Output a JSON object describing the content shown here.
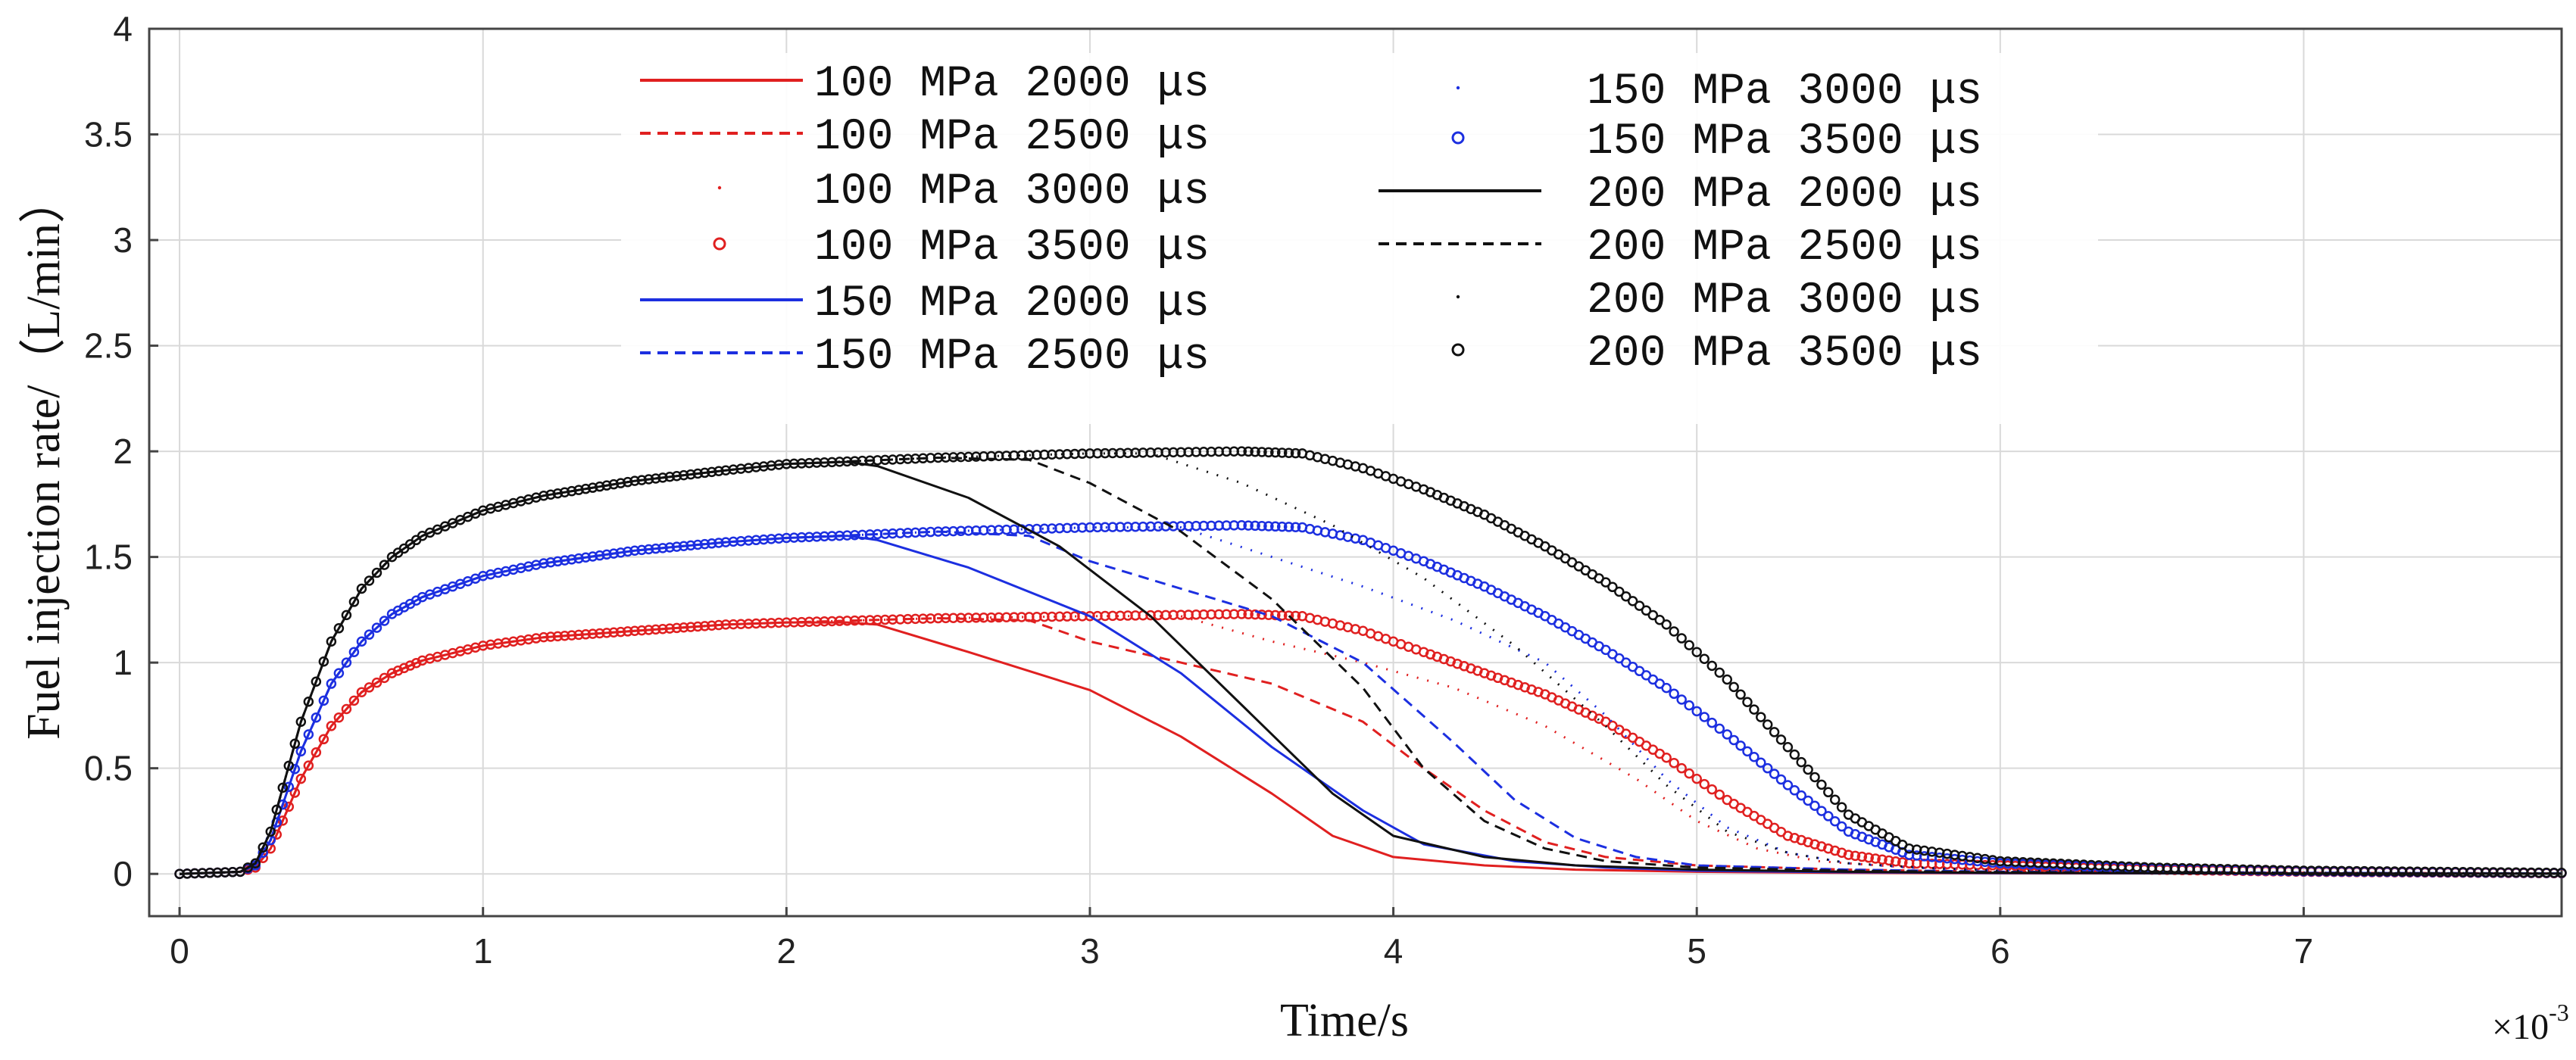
{
  "chart_data": {
    "type": "line",
    "title": "",
    "xlabel": "Time/s",
    "ylabel": "Fuel injection rate/（L/min）",
    "x_multiplier_label": "×10",
    "x_multiplier_exponent": "-3",
    "xlim": [
      -0.1,
      7.85
    ],
    "ylim": [
      -0.2,
      4.0
    ],
    "xticks": [
      0,
      1,
      2,
      3,
      4,
      5,
      6,
      7
    ],
    "yticks": [
      0,
      0.5,
      1,
      1.5,
      2,
      2.5,
      3,
      3.5,
      4
    ],
    "xtick_labels": [
      "0",
      "1",
      "2",
      "3",
      "4",
      "5",
      "6",
      "7"
    ],
    "ytick_labels": [
      "0",
      "0.5",
      "1",
      "1.5",
      "2",
      "2.5",
      "3",
      "3.5",
      "4"
    ],
    "grid": true,
    "legend_position": "top-center",
    "series": [
      {
        "name": "100 MPa 2000 μs",
        "pressure": "100",
        "duration": "2000",
        "color": "#e02020",
        "style": "solid-thin",
        "x": [
          0,
          0.2,
          0.25,
          0.3,
          0.4,
          0.5,
          0.6,
          0.7,
          0.8,
          1.0,
          1.2,
          1.5,
          1.8,
          2.0,
          2.2,
          2.3,
          2.6,
          3.0,
          3.3,
          3.6,
          3.8,
          4.0,
          4.3,
          4.6,
          5.0,
          5.5,
          6.0,
          7.0,
          7.85
        ],
        "y": [
          0,
          0.01,
          0.03,
          0.12,
          0.45,
          0.7,
          0.86,
          0.95,
          1.01,
          1.08,
          1.12,
          1.15,
          1.18,
          1.19,
          1.19,
          1.18,
          1.05,
          0.87,
          0.65,
          0.38,
          0.18,
          0.08,
          0.04,
          0.02,
          0.01,
          0.005,
          0.003,
          0.002,
          0.001
        ]
      },
      {
        "name": "100 MPa 2500 μs",
        "pressure": "100",
        "duration": "2500",
        "color": "#e02020",
        "style": "dashed",
        "x": [
          0,
          0.2,
          0.25,
          0.3,
          0.4,
          0.5,
          0.6,
          0.7,
          0.8,
          1.0,
          1.2,
          1.5,
          1.8,
          2.0,
          2.5,
          2.8,
          3.0,
          3.3,
          3.6,
          3.9,
          4.1,
          4.3,
          4.5,
          4.7,
          5.0,
          5.5,
          6.0,
          7.0,
          7.85
        ],
        "y": [
          0,
          0.01,
          0.03,
          0.12,
          0.45,
          0.7,
          0.86,
          0.95,
          1.01,
          1.08,
          1.12,
          1.15,
          1.18,
          1.19,
          1.21,
          1.2,
          1.1,
          1.0,
          0.9,
          0.72,
          0.5,
          0.3,
          0.15,
          0.08,
          0.04,
          0.02,
          0.01,
          0.005,
          0.002
        ]
      },
      {
        "name": "100 MPa 3000 μs",
        "pressure": "100",
        "duration": "3000",
        "color": "#e02020",
        "style": "dotted",
        "x": [
          0,
          0.2,
          0.25,
          0.3,
          0.4,
          0.5,
          0.6,
          0.7,
          0.8,
          1.0,
          1.2,
          1.5,
          1.8,
          2.0,
          2.5,
          3.0,
          3.3,
          3.6,
          3.9,
          4.2,
          4.5,
          4.8,
          5.0,
          5.2,
          5.4,
          5.7,
          6.0,
          7.0,
          7.85
        ],
        "y": [
          0,
          0.01,
          0.03,
          0.12,
          0.45,
          0.7,
          0.86,
          0.95,
          1.01,
          1.08,
          1.12,
          1.15,
          1.18,
          1.19,
          1.21,
          1.22,
          1.22,
          1.1,
          1.0,
          0.88,
          0.7,
          0.45,
          0.25,
          0.12,
          0.06,
          0.03,
          0.02,
          0.005,
          0.002
        ]
      },
      {
        "name": "100 MPa 3500 μs",
        "pressure": "100",
        "duration": "3500",
        "color": "#e02020",
        "style": "circles",
        "x": [
          0,
          0.2,
          0.25,
          0.3,
          0.4,
          0.5,
          0.6,
          0.7,
          0.8,
          1.0,
          1.2,
          1.5,
          1.8,
          2.0,
          2.5,
          3.0,
          3.5,
          3.7,
          3.9,
          4.1,
          4.3,
          4.5,
          4.7,
          4.9,
          5.1,
          5.3,
          5.5,
          5.7,
          6.0,
          6.5,
          7.0,
          7.85
        ],
        "y": [
          0,
          0.01,
          0.03,
          0.12,
          0.45,
          0.7,
          0.86,
          0.95,
          1.01,
          1.08,
          1.12,
          1.15,
          1.18,
          1.19,
          1.21,
          1.22,
          1.23,
          1.22,
          1.15,
          1.05,
          0.95,
          0.85,
          0.72,
          0.55,
          0.35,
          0.18,
          0.09,
          0.05,
          0.04,
          0.02,
          0.01,
          0.003
        ]
      },
      {
        "name": "150 MPa 2000 μs",
        "pressure": "150",
        "duration": "2000",
        "color": "#1c2fe0",
        "style": "solid-thin",
        "x": [
          0,
          0.2,
          0.25,
          0.3,
          0.4,
          0.5,
          0.6,
          0.7,
          0.8,
          1.0,
          1.2,
          1.5,
          1.8,
          2.0,
          2.2,
          2.3,
          2.6,
          3.0,
          3.3,
          3.6,
          3.9,
          4.1,
          4.4,
          4.7,
          5.0,
          5.5,
          6.0,
          7.0,
          7.85
        ],
        "y": [
          0,
          0.01,
          0.04,
          0.16,
          0.58,
          0.9,
          1.1,
          1.23,
          1.31,
          1.41,
          1.47,
          1.53,
          1.57,
          1.59,
          1.6,
          1.58,
          1.45,
          1.22,
          0.95,
          0.6,
          0.3,
          0.14,
          0.06,
          0.03,
          0.015,
          0.008,
          0.004,
          0.002,
          0.001
        ]
      },
      {
        "name": "150 MPa 2500 μs",
        "pressure": "150",
        "duration": "2500",
        "color": "#1c2fe0",
        "style": "dashed",
        "x": [
          0,
          0.2,
          0.25,
          0.3,
          0.4,
          0.5,
          0.6,
          0.7,
          0.8,
          1.0,
          1.2,
          1.5,
          1.8,
          2.0,
          2.5,
          2.8,
          3.0,
          3.3,
          3.6,
          3.9,
          4.2,
          4.4,
          4.6,
          4.8,
          5.0,
          5.5,
          6.0,
          7.0,
          7.85
        ],
        "y": [
          0,
          0.01,
          0.04,
          0.16,
          0.58,
          0.9,
          1.1,
          1.23,
          1.31,
          1.41,
          1.47,
          1.53,
          1.57,
          1.59,
          1.62,
          1.6,
          1.48,
          1.35,
          1.22,
          1.0,
          0.62,
          0.35,
          0.17,
          0.08,
          0.04,
          0.02,
          0.01,
          0.005,
          0.002
        ]
      },
      {
        "name": "150 MPa 3000 μs",
        "pressure": "150",
        "duration": "3000",
        "color": "#1c2fe0",
        "style": "dotted",
        "x": [
          0,
          0.2,
          0.25,
          0.3,
          0.4,
          0.5,
          0.6,
          0.7,
          0.8,
          1.0,
          1.2,
          1.5,
          1.8,
          2.0,
          2.5,
          3.0,
          3.3,
          3.6,
          3.9,
          4.2,
          4.5,
          4.7,
          4.9,
          5.1,
          5.3,
          5.5,
          5.7,
          6.0,
          7.0,
          7.85
        ],
        "y": [
          0,
          0.01,
          0.04,
          0.16,
          0.58,
          0.9,
          1.1,
          1.23,
          1.31,
          1.41,
          1.47,
          1.53,
          1.57,
          1.59,
          1.62,
          1.64,
          1.64,
          1.5,
          1.36,
          1.2,
          1.0,
          0.75,
          0.45,
          0.22,
          0.1,
          0.05,
          0.03,
          0.015,
          0.005,
          0.002
        ]
      },
      {
        "name": "150 MPa 3500 μs",
        "pressure": "150",
        "duration": "3500",
        "color": "#1c2fe0",
        "style": "circles",
        "x": [
          0,
          0.2,
          0.25,
          0.3,
          0.4,
          0.5,
          0.6,
          0.7,
          0.8,
          1.0,
          1.2,
          1.5,
          1.8,
          2.0,
          2.5,
          3.0,
          3.5,
          3.7,
          3.9,
          4.1,
          4.3,
          4.5,
          4.7,
          4.9,
          5.1,
          5.3,
          5.5,
          5.7,
          6.0,
          6.5,
          7.0,
          7.85
        ],
        "y": [
          0,
          0.01,
          0.04,
          0.16,
          0.58,
          0.9,
          1.1,
          1.23,
          1.31,
          1.41,
          1.47,
          1.53,
          1.57,
          1.59,
          1.62,
          1.64,
          1.65,
          1.64,
          1.58,
          1.48,
          1.36,
          1.22,
          1.06,
          0.88,
          0.66,
          0.42,
          0.2,
          0.09,
          0.05,
          0.025,
          0.012,
          0.004
        ]
      },
      {
        "name": "200 MPa 2000 μs",
        "pressure": "200",
        "duration": "2000",
        "color": "#111111",
        "style": "solid-thin",
        "x": [
          0,
          0.2,
          0.25,
          0.3,
          0.4,
          0.5,
          0.6,
          0.7,
          0.8,
          1.0,
          1.2,
          1.5,
          1.8,
          2.0,
          2.2,
          2.3,
          2.6,
          2.9,
          3.2,
          3.5,
          3.8,
          4.0,
          4.3,
          4.6,
          5.0,
          5.5,
          6.0,
          7.0,
          7.85
        ],
        "y": [
          0,
          0.01,
          0.05,
          0.2,
          0.72,
          1.1,
          1.35,
          1.5,
          1.6,
          1.72,
          1.79,
          1.86,
          1.91,
          1.94,
          1.95,
          1.93,
          1.78,
          1.55,
          1.22,
          0.8,
          0.38,
          0.18,
          0.08,
          0.04,
          0.02,
          0.01,
          0.005,
          0.002,
          0.001
        ]
      },
      {
        "name": "200 MPa 2500 μs",
        "pressure": "200",
        "duration": "2500",
        "color": "#111111",
        "style": "dashed",
        "x": [
          0,
          0.2,
          0.25,
          0.3,
          0.4,
          0.5,
          0.6,
          0.7,
          0.8,
          1.0,
          1.2,
          1.5,
          1.8,
          2.0,
          2.5,
          2.8,
          3.0,
          3.3,
          3.6,
          3.9,
          4.1,
          4.3,
          4.5,
          4.7,
          5.0,
          5.5,
          6.0,
          7.0,
          7.85
        ],
        "y": [
          0,
          0.01,
          0.05,
          0.2,
          0.72,
          1.1,
          1.35,
          1.5,
          1.6,
          1.72,
          1.79,
          1.86,
          1.91,
          1.94,
          1.97,
          1.96,
          1.85,
          1.62,
          1.3,
          0.88,
          0.5,
          0.25,
          0.12,
          0.06,
          0.03,
          0.015,
          0.008,
          0.003,
          0.001
        ]
      },
      {
        "name": "200 MPa 3000 μs",
        "pressure": "200",
        "duration": "3000",
        "color": "#111111",
        "style": "dotted",
        "x": [
          0,
          0.2,
          0.25,
          0.3,
          0.4,
          0.5,
          0.6,
          0.7,
          0.8,
          1.0,
          1.2,
          1.5,
          1.8,
          2.0,
          2.5,
          3.0,
          3.2,
          3.5,
          3.8,
          4.1,
          4.4,
          4.7,
          4.9,
          5.1,
          5.3,
          5.5,
          5.8,
          6.0,
          7.0,
          7.85
        ],
        "y": [
          0,
          0.01,
          0.05,
          0.2,
          0.72,
          1.1,
          1.35,
          1.5,
          1.6,
          1.72,
          1.79,
          1.86,
          1.91,
          1.94,
          1.97,
          1.99,
          1.99,
          1.85,
          1.65,
          1.4,
          1.08,
          0.7,
          0.42,
          0.2,
          0.1,
          0.05,
          0.025,
          0.015,
          0.005,
          0.002
        ]
      },
      {
        "name": "200 MPa 3500 μs",
        "pressure": "200",
        "duration": "3500",
        "color": "#111111",
        "style": "circles",
        "x": [
          0,
          0.2,
          0.25,
          0.3,
          0.4,
          0.5,
          0.6,
          0.7,
          0.8,
          1.0,
          1.2,
          1.5,
          1.8,
          2.0,
          2.5,
          3.0,
          3.5,
          3.7,
          3.9,
          4.1,
          4.3,
          4.5,
          4.7,
          4.9,
          5.1,
          5.3,
          5.5,
          5.7,
          6.0,
          6.5,
          7.0,
          7.85
        ],
        "y": [
          0,
          0.01,
          0.05,
          0.2,
          0.72,
          1.1,
          1.35,
          1.5,
          1.6,
          1.72,
          1.79,
          1.86,
          1.91,
          1.94,
          1.97,
          1.99,
          2.0,
          1.99,
          1.92,
          1.82,
          1.7,
          1.55,
          1.38,
          1.18,
          0.92,
          0.6,
          0.28,
          0.12,
          0.06,
          0.03,
          0.015,
          0.005
        ]
      }
    ]
  }
}
